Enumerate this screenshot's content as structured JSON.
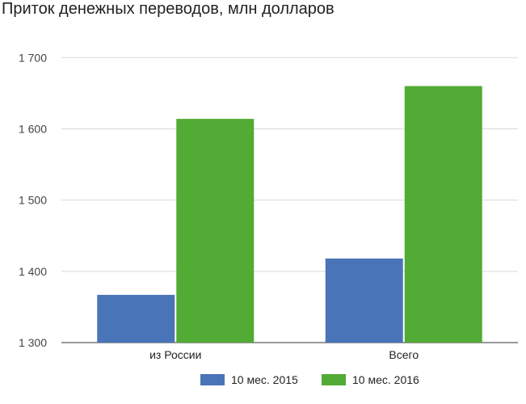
{
  "chart_data": {
    "type": "bar",
    "title": "Приток денежных переводов, млн долларов",
    "categories": [
      "из России",
      "Всего"
    ],
    "series": [
      {
        "name": "10 мес. 2015",
        "values": [
          1367,
          1418
        ],
        "color": "#4a74b8"
      },
      {
        "name": "10 мес. 2016",
        "values": [
          1614,
          1660
        ],
        "color": "#52ab34"
      }
    ],
    "yticks": [
      "1 300",
      "1 400",
      "1 500",
      "1 600",
      "1 700"
    ],
    "ytick_values": [
      1300,
      1400,
      1500,
      1600,
      1700
    ],
    "ylim": [
      1300,
      1740
    ],
    "grid": true,
    "legend": "bottom"
  }
}
